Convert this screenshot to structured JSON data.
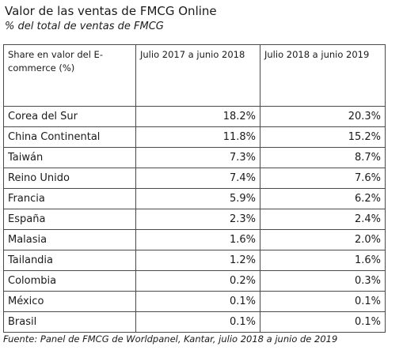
{
  "title": "Valor de las ventas de FMCG Online",
  "subtitle": "% del total de ventas de FMCG",
  "table": {
    "headers": [
      "Share en valor del E-commerce (%)",
      "Julio 2017 a junio 2018",
      "Julio 2018 a junio 2019"
    ],
    "rows": [
      [
        "Corea del Sur",
        "18.2%",
        "20.3%"
      ],
      [
        "China Continental",
        "11.8%",
        "15.2%"
      ],
      [
        "Taiwán",
        "7.3%",
        "8.7%"
      ],
      [
        "Reino Unido",
        "7.4%",
        "7.6%"
      ],
      [
        "Francia",
        "5.9%",
        "6.2%"
      ],
      [
        "España",
        "2.3%",
        "2.4%"
      ],
      [
        "Malasia",
        "1.6%",
        "2.0%"
      ],
      [
        "Tailandia",
        "1.2%",
        "1.6%"
      ],
      [
        "Colombia",
        "0.2%",
        "0.3%"
      ],
      [
        "México",
        "0.1%",
        "0.1%"
      ],
      [
        "Brasil",
        "0.1%",
        "0.1%"
      ]
    ]
  },
  "source": "Fuente: Panel de FMCG de Worldpanel, Kantar, julio 2018 a junio de 2019"
}
